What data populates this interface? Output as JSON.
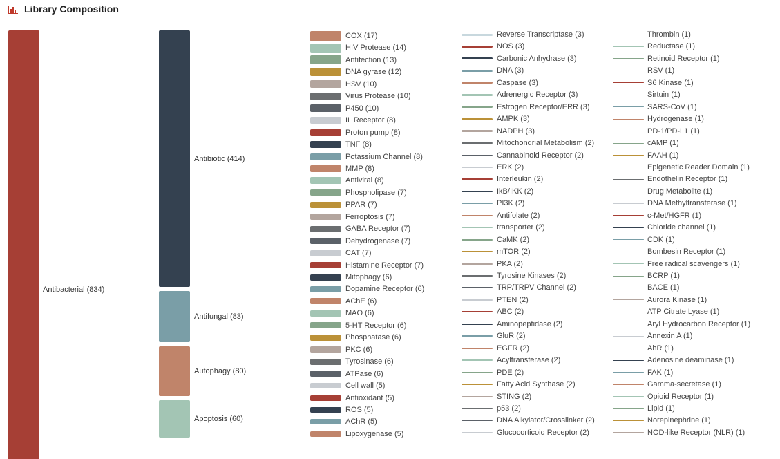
{
  "title": "Library Composition",
  "chart_data": {
    "type": "treemap-columns",
    "level1": [
      {
        "label": "Antibacterial (834)",
        "name": "Antibacterial",
        "value": 834,
        "color": "#a63f35"
      }
    ],
    "level2": [
      {
        "label": "Antibiotic (414)",
        "name": "Antibiotic",
        "value": 414,
        "color": "#344150"
      },
      {
        "label": "Antifungal (83)",
        "name": "Antifungal",
        "value": 83,
        "color": "#7a9ea7"
      },
      {
        "label": "Autophagy (80)",
        "name": "Autophagy",
        "value": 80,
        "color": "#c0846a"
      },
      {
        "label": "Apoptosis (60)",
        "name": "Apoptosis",
        "value": 60,
        "color": "#a3c5b4"
      }
    ],
    "level3": [
      {
        "label": "COX (17)",
        "value": 17,
        "color": "#c0846a"
      },
      {
        "label": "HIV Protease (14)",
        "value": 14,
        "color": "#a3c5b4"
      },
      {
        "label": "Antifection (13)",
        "value": 13,
        "color": "#86a58a"
      },
      {
        "label": "DNA gyrase (12)",
        "value": 12,
        "color": "#bb9138"
      },
      {
        "label": "HSV (10)",
        "value": 10,
        "color": "#b3a59e"
      },
      {
        "label": "Virus Protease (10)",
        "value": 10,
        "color": "#6b6e70"
      },
      {
        "label": "P450 (10)",
        "value": 10,
        "color": "#5b6168"
      },
      {
        "label": "IL Receptor (8)",
        "value": 8,
        "color": "#c8ccd1"
      },
      {
        "label": "Proton pump (8)",
        "value": 8,
        "color": "#a63f35"
      },
      {
        "label": "TNF (8)",
        "value": 8,
        "color": "#344150"
      },
      {
        "label": "Potassium Channel (8)",
        "value": 8,
        "color": "#7a9ea7"
      },
      {
        "label": "MMP (8)",
        "value": 8,
        "color": "#c0846a"
      },
      {
        "label": "Antiviral (8)",
        "value": 8,
        "color": "#a3c5b4"
      },
      {
        "label": "Phospholipase (7)",
        "value": 7,
        "color": "#86a58a"
      },
      {
        "label": "PPAR (7)",
        "value": 7,
        "color": "#bb9138"
      },
      {
        "label": "Ferroptosis (7)",
        "value": 7,
        "color": "#b3a59e"
      },
      {
        "label": "GABA Receptor (7)",
        "value": 7,
        "color": "#6b6e70"
      },
      {
        "label": "Dehydrogenase (7)",
        "value": 7,
        "color": "#5b6168"
      },
      {
        "label": "CAT (7)",
        "value": 7,
        "color": "#c8ccd1"
      },
      {
        "label": "Histamine Receptor (7)",
        "value": 7,
        "color": "#a63f35"
      },
      {
        "label": "Mitophagy (6)",
        "value": 6,
        "color": "#344150"
      },
      {
        "label": "Dopamine Receptor (6)",
        "value": 6,
        "color": "#7a9ea7"
      },
      {
        "label": "AChE (6)",
        "value": 6,
        "color": "#c0846a"
      },
      {
        "label": "MAO (6)",
        "value": 6,
        "color": "#a3c5b4"
      },
      {
        "label": "5-HT Receptor (6)",
        "value": 6,
        "color": "#86a58a"
      },
      {
        "label": "Phosphatase (6)",
        "value": 6,
        "color": "#bb9138"
      },
      {
        "label": "PKC (6)",
        "value": 6,
        "color": "#b3a59e"
      },
      {
        "label": "Tyrosinase (6)",
        "value": 6,
        "color": "#6b6e70"
      },
      {
        "label": "ATPase (6)",
        "value": 6,
        "color": "#5b6168"
      },
      {
        "label": "Cell wall (5)",
        "value": 5,
        "color": "#c8ccd1"
      },
      {
        "label": "Antioxidant (5)",
        "value": 5,
        "color": "#a63f35"
      },
      {
        "label": "ROS (5)",
        "value": 5,
        "color": "#344150"
      },
      {
        "label": "AChR (5)",
        "value": 5,
        "color": "#7a9ea7"
      },
      {
        "label": "Lipoxygenase (5)",
        "value": 5,
        "color": "#c0846a"
      }
    ],
    "level4": [
      {
        "label": "Reverse Transcriptase (3)",
        "value": 3,
        "color": "#c8d8de"
      },
      {
        "label": "NOS (3)",
        "value": 3,
        "color": "#a63f35"
      },
      {
        "label": "Carbonic Anhydrase (3)",
        "value": 3,
        "color": "#344150"
      },
      {
        "label": "DNA (3)",
        "value": 3,
        "color": "#7a9ea7"
      },
      {
        "label": "Caspase (3)",
        "value": 3,
        "color": "#c0846a"
      },
      {
        "label": "Adrenergic Receptor (3)",
        "value": 3,
        "color": "#a3c5b4"
      },
      {
        "label": "Estrogen Receptor/ERR (3)",
        "value": 3,
        "color": "#86a58a"
      },
      {
        "label": "AMPK (3)",
        "value": 3,
        "color": "#bb9138"
      },
      {
        "label": "NADPH (3)",
        "value": 3,
        "color": "#b3a59e"
      },
      {
        "label": "Mitochondrial Metabolism (2)",
        "value": 2,
        "color": "#6b6e70"
      },
      {
        "label": "Cannabinoid Receptor (2)",
        "value": 2,
        "color": "#5b6168"
      },
      {
        "label": "ERK (2)",
        "value": 2,
        "color": "#c8ccd1"
      },
      {
        "label": "Interleukin (2)",
        "value": 2,
        "color": "#a63f35"
      },
      {
        "label": "IkB/IKK (2)",
        "value": 2,
        "color": "#344150"
      },
      {
        "label": "PI3K (2)",
        "value": 2,
        "color": "#7a9ea7"
      },
      {
        "label": "Antifolate (2)",
        "value": 2,
        "color": "#c0846a"
      },
      {
        "label": "transporter (2)",
        "value": 2,
        "color": "#a3c5b4"
      },
      {
        "label": "CaMK (2)",
        "value": 2,
        "color": "#86a58a"
      },
      {
        "label": "mTOR (2)",
        "value": 2,
        "color": "#bb9138"
      },
      {
        "label": "PKA (2)",
        "value": 2,
        "color": "#b3a59e"
      },
      {
        "label": "Tyrosine Kinases (2)",
        "value": 2,
        "color": "#6b6e70"
      },
      {
        "label": "TRP/TRPV Channel (2)",
        "value": 2,
        "color": "#5b6168"
      },
      {
        "label": "PTEN (2)",
        "value": 2,
        "color": "#c8ccd1"
      },
      {
        "label": "ABC (2)",
        "value": 2,
        "color": "#a63f35"
      },
      {
        "label": "Aminopeptidase (2)",
        "value": 2,
        "color": "#344150"
      },
      {
        "label": "GluR (2)",
        "value": 2,
        "color": "#7a9ea7"
      },
      {
        "label": "EGFR (2)",
        "value": 2,
        "color": "#c0846a"
      },
      {
        "label": "Acyltransferase (2)",
        "value": 2,
        "color": "#a3c5b4"
      },
      {
        "label": "PDE (2)",
        "value": 2,
        "color": "#86a58a"
      },
      {
        "label": "Fatty Acid Synthase (2)",
        "value": 2,
        "color": "#bb9138"
      },
      {
        "label": "STING (2)",
        "value": 2,
        "color": "#b3a59e"
      },
      {
        "label": "p53 (2)",
        "value": 2,
        "color": "#6b6e70"
      },
      {
        "label": "DNA Alkylator/Crosslinker (2)",
        "value": 2,
        "color": "#5b6168"
      },
      {
        "label": "Glucocorticoid Receptor (2)",
        "value": 2,
        "color": "#c8ccd1"
      }
    ],
    "level5": [
      {
        "label": "Thrombin (1)",
        "value": 1,
        "color": "#c0846a"
      },
      {
        "label": "Reductase (1)",
        "value": 1,
        "color": "#a3c5b4"
      },
      {
        "label": "Retinoid Receptor (1)",
        "value": 1,
        "color": "#86a58a"
      },
      {
        "label": "RSV (1)",
        "value": 1,
        "color": "#c8ccd1"
      },
      {
        "label": "S6 Kinase (1)",
        "value": 1,
        "color": "#a63f35"
      },
      {
        "label": "Sirtuin (1)",
        "value": 1,
        "color": "#344150"
      },
      {
        "label": "SARS-CoV (1)",
        "value": 1,
        "color": "#7a9ea7"
      },
      {
        "label": "Hydrogenase (1)",
        "value": 1,
        "color": "#c0846a"
      },
      {
        "label": "PD-1/PD-L1 (1)",
        "value": 1,
        "color": "#a3c5b4"
      },
      {
        "label": "cAMP (1)",
        "value": 1,
        "color": "#86a58a"
      },
      {
        "label": "FAAH (1)",
        "value": 1,
        "color": "#bb9138"
      },
      {
        "label": "Epigenetic Reader Domain (1)",
        "value": 1,
        "color": "#b3a59e"
      },
      {
        "label": "Endothelin Receptor (1)",
        "value": 1,
        "color": "#6b6e70"
      },
      {
        "label": "Drug Metabolite (1)",
        "value": 1,
        "color": "#5b6168"
      },
      {
        "label": "DNA Methyltransferase (1)",
        "value": 1,
        "color": "#c8ccd1"
      },
      {
        "label": "c-Met/HGFR (1)",
        "value": 1,
        "color": "#a63f35"
      },
      {
        "label": "Chloride channel (1)",
        "value": 1,
        "color": "#344150"
      },
      {
        "label": "CDK (1)",
        "value": 1,
        "color": "#7a9ea7"
      },
      {
        "label": "Bombesin Receptor (1)",
        "value": 1,
        "color": "#c0846a"
      },
      {
        "label": "Free radical scavengers (1)",
        "value": 1,
        "color": "#a3c5b4"
      },
      {
        "label": "BCRP (1)",
        "value": 1,
        "color": "#86a58a"
      },
      {
        "label": "BACE (1)",
        "value": 1,
        "color": "#bb9138"
      },
      {
        "label": "Aurora Kinase (1)",
        "value": 1,
        "color": "#b3a59e"
      },
      {
        "label": "ATP Citrate Lyase (1)",
        "value": 1,
        "color": "#6b6e70"
      },
      {
        "label": "Aryl Hydrocarbon Receptor (1)",
        "value": 1,
        "color": "#5b6168"
      },
      {
        "label": "Annexin A (1)",
        "value": 1,
        "color": "#c8ccd1"
      },
      {
        "label": "AhR (1)",
        "value": 1,
        "color": "#a63f35"
      },
      {
        "label": "Adenosine deaminase (1)",
        "value": 1,
        "color": "#344150"
      },
      {
        "label": "FAK (1)",
        "value": 1,
        "color": "#7a9ea7"
      },
      {
        "label": "Gamma-secretase (1)",
        "value": 1,
        "color": "#c0846a"
      },
      {
        "label": "Opioid Receptor (1)",
        "value": 1,
        "color": "#a3c5b4"
      },
      {
        "label": "Lipid (1)",
        "value": 1,
        "color": "#86a58a"
      },
      {
        "label": "Norepinephrine (1)",
        "value": 1,
        "color": "#bb9138"
      },
      {
        "label": "NOD-like Receptor (NLR) (1)",
        "value": 1,
        "color": "#b3a59e"
      }
    ]
  }
}
